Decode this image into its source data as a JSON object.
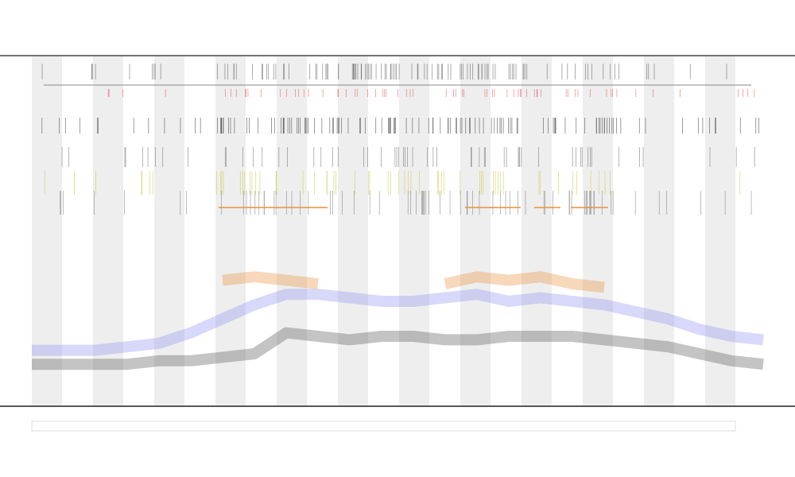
{
  "chart_data": {
    "type": "line",
    "x": [
      0,
      1,
      2,
      3,
      4,
      5,
      6,
      7,
      8,
      9,
      10,
      11,
      12,
      13,
      14,
      15,
      16,
      17,
      18,
      19,
      20,
      21,
      22,
      23
    ],
    "xlim": [
      0,
      23
    ],
    "ylim": [
      0,
      100
    ],
    "series": [
      {
        "color": "#555555",
        "values": [
          12,
          12,
          12,
          12,
          13,
          13,
          14,
          15,
          21,
          20,
          19,
          20,
          20,
          19,
          19,
          20,
          20,
          20,
          19,
          18,
          17,
          15,
          13,
          12
        ]
      },
      {
        "color": "#8f8ff0",
        "values": [
          16,
          16,
          16,
          17,
          18,
          21,
          25,
          29,
          32,
          32,
          31,
          30,
          30,
          31,
          32,
          30,
          31,
          30,
          29,
          27,
          25,
          22,
          20,
          19
        ]
      },
      {
        "color": "#e8903a",
        "values": [
          null,
          null,
          null,
          null,
          null,
          null,
          36,
          37,
          36,
          35,
          null,
          null,
          null,
          35,
          37,
          36,
          37,
          35,
          34,
          null,
          null,
          null,
          null,
          null
        ]
      }
    ]
  }
}
